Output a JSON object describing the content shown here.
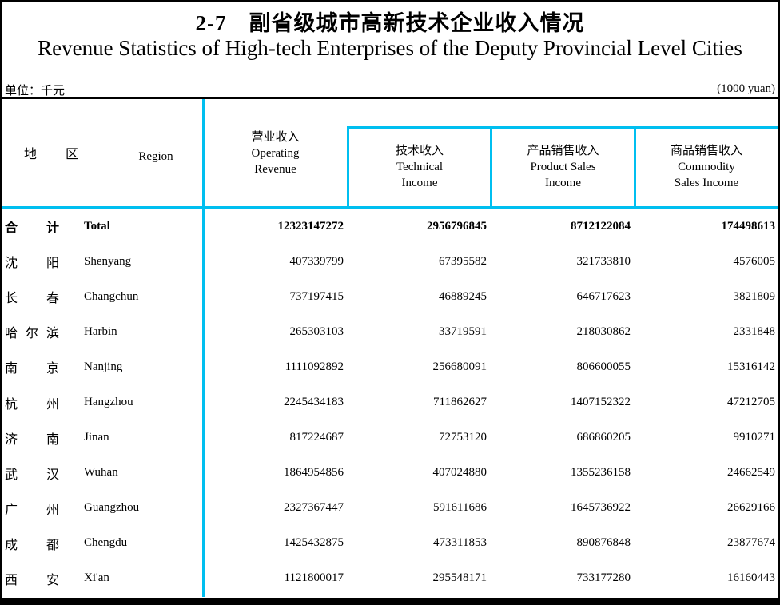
{
  "colors": {
    "accent": "#00BFF0",
    "ink": "#000000"
  },
  "title": {
    "zh": "2-7　副省级城市高新技术企业收入情况",
    "en": "Revenue Statistics of High-tech Enterprises of the Deputy Provincial Level Cities"
  },
  "unit": {
    "zh": "单位：千元",
    "en": "(1000 yuan)"
  },
  "table": {
    "header": {
      "region": {
        "zh": "地区",
        "en": "Region"
      },
      "operating": {
        "zh": "营业收入",
        "en_line1": "Operating",
        "en_line2": "Revenue"
      },
      "technical": {
        "zh": "技术收入",
        "en_line1": "Technical",
        "en_line2": "Income"
      },
      "product": {
        "zh": "产品销售收入",
        "en_line1": "Product Sales",
        "en_line2": "Income"
      },
      "commodity": {
        "zh": "商品销售收入",
        "en_line1": "Commodity",
        "en_line2": "Sales Income"
      }
    },
    "rows": [
      {
        "zh": "合计",
        "en": "Total",
        "values": [
          "12323147272",
          "2956796845",
          "8712122084",
          "174498613"
        ]
      },
      {
        "zh": "沈阳",
        "en": "Shenyang",
        "values": [
          "407339799",
          "67395582",
          "321733810",
          "4576005"
        ]
      },
      {
        "zh": "长春",
        "en": "Changchun",
        "values": [
          "737197415",
          "46889245",
          "646717623",
          "3821809"
        ]
      },
      {
        "zh": "哈尔滨",
        "en": "Harbin",
        "values": [
          "265303103",
          "33719591",
          "218030862",
          "2331848"
        ]
      },
      {
        "zh": "南京",
        "en": "Nanjing",
        "values": [
          "1111092892",
          "256680091",
          "806600055",
          "15316142"
        ]
      },
      {
        "zh": "杭州",
        "en": "Hangzhou",
        "values": [
          "2245434183",
          "711862627",
          "1407152322",
          "47212705"
        ]
      },
      {
        "zh": "济南",
        "en": "Jinan",
        "values": [
          "817224687",
          "72753120",
          "686860205",
          "9910271"
        ]
      },
      {
        "zh": "武汉",
        "en": "Wuhan",
        "values": [
          "1864954856",
          "407024880",
          "1355236158",
          "24662549"
        ]
      },
      {
        "zh": "广州",
        "en": "Guangzhou",
        "values": [
          "2327367447",
          "591611686",
          "1645736922",
          "26629166"
        ]
      },
      {
        "zh": "成都",
        "en": "Chengdu",
        "values": [
          "1425432875",
          "473311853",
          "890876848",
          "23877674"
        ]
      },
      {
        "zh": "西安",
        "en": "Xi'an",
        "values": [
          "1121800017",
          "295548171",
          "733177280",
          "16160443"
        ]
      }
    ]
  }
}
